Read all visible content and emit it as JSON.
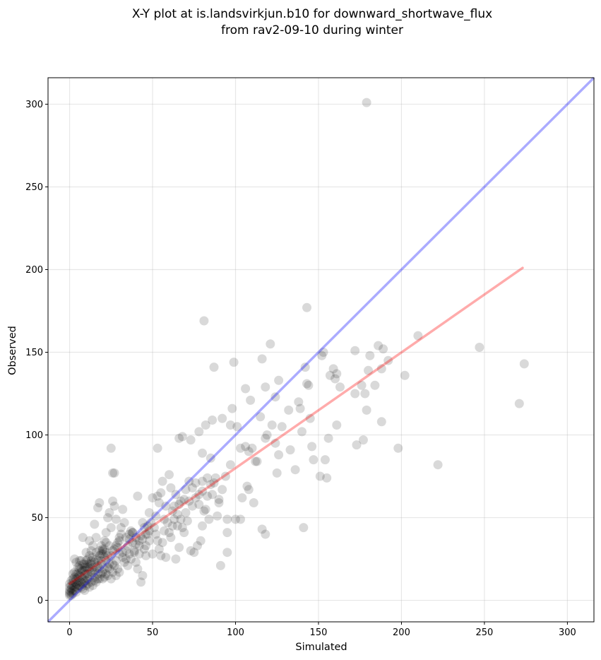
{
  "chart_data": {
    "type": "scatter",
    "title_line1": "X-Y plot at is.landsvirkjun.b10 for downward_shortwave_flux",
    "title_line2": "from rav2-09-10 during winter",
    "xlabel": "Simulated",
    "ylabel": "Observed",
    "xlim": [
      -13,
      316
    ],
    "ylim": [
      -13,
      316
    ],
    "xticks": [
      0,
      50,
      100,
      150,
      200,
      250,
      300
    ],
    "yticks": [
      0,
      50,
      100,
      150,
      200,
      250,
      300
    ],
    "grid": true,
    "colors": {
      "points": "#000000",
      "identity": "#0000ff",
      "fit": "#ff0000"
    },
    "identity_line": {
      "x": [
        -13,
        316
      ],
      "y": [
        -13,
        316
      ]
    },
    "fit_line": {
      "x": [
        0,
        273
      ],
      "y": [
        10,
        201
      ]
    },
    "points": [
      [
        179,
        301
      ],
      [
        81,
        169
      ],
      [
        143,
        177
      ],
      [
        210,
        160
      ],
      [
        247,
        153
      ],
      [
        274,
        143
      ],
      [
        271,
        119
      ],
      [
        222,
        82
      ],
      [
        198,
        92
      ],
      [
        121,
        155
      ],
      [
        153,
        150
      ],
      [
        172,
        151
      ],
      [
        186,
        154
      ],
      [
        189,
        152
      ],
      [
        192,
        145
      ],
      [
        181,
        148
      ],
      [
        188,
        140
      ],
      [
        180,
        139
      ],
      [
        202,
        136
      ],
      [
        142,
        141
      ],
      [
        143,
        131
      ],
      [
        144,
        130
      ],
      [
        159,
        140
      ],
      [
        161,
        137
      ],
      [
        163,
        129
      ],
      [
        176,
        130
      ],
      [
        184,
        130
      ],
      [
        178,
        125
      ],
      [
        172,
        125
      ],
      [
        157,
        136
      ],
      [
        160,
        134
      ],
      [
        152,
        148
      ],
      [
        87,
        141
      ],
      [
        99,
        144
      ],
      [
        116,
        146
      ],
      [
        118,
        129
      ],
      [
        106,
        128
      ],
      [
        124,
        123
      ],
      [
        126,
        133
      ],
      [
        109,
        121
      ],
      [
        98,
        116
      ],
      [
        132,
        115
      ],
      [
        138,
        120
      ],
      [
        139,
        116
      ],
      [
        140,
        102
      ],
      [
        145,
        110
      ],
      [
        161,
        106
      ],
      [
        179,
        115
      ],
      [
        188,
        108
      ],
      [
        173,
        94
      ],
      [
        177,
        97
      ],
      [
        156,
        98
      ],
      [
        154,
        85
      ],
      [
        151,
        75
      ],
      [
        155,
        74
      ],
      [
        146,
        93
      ],
      [
        147,
        85
      ],
      [
        136,
        79
      ],
      [
        133,
        91
      ],
      [
        125,
        77
      ],
      [
        118,
        98
      ],
      [
        122,
        106
      ],
      [
        128,
        105
      ],
      [
        115,
        111
      ],
      [
        119,
        100
      ],
      [
        124,
        95
      ],
      [
        126,
        88
      ],
      [
        110,
        92
      ],
      [
        112,
        84
      ],
      [
        108,
        90
      ],
      [
        103,
        92
      ],
      [
        106,
        93
      ],
      [
        101,
        105
      ],
      [
        97,
        106
      ],
      [
        92,
        110
      ],
      [
        86,
        109
      ],
      [
        82,
        106
      ],
      [
        80,
        89
      ],
      [
        78,
        102
      ],
      [
        73,
        97
      ],
      [
        66,
        98
      ],
      [
        68,
        99
      ],
      [
        53,
        92
      ],
      [
        25,
        92
      ],
      [
        26,
        77
      ],
      [
        27,
        77
      ],
      [
        103,
        49
      ],
      [
        107,
        69
      ],
      [
        108,
        67
      ],
      [
        111,
        59
      ],
      [
        104,
        62
      ],
      [
        95,
        49
      ],
      [
        95,
        41
      ],
      [
        95,
        29
      ],
      [
        91,
        21
      ],
      [
        90,
        61
      ],
      [
        89,
        51
      ],
      [
        87,
        71
      ],
      [
        85,
        86
      ],
      [
        83,
        74
      ],
      [
        81,
        54
      ],
      [
        80,
        72
      ],
      [
        78,
        64
      ],
      [
        76,
        71
      ],
      [
        74,
        57
      ],
      [
        72,
        72
      ],
      [
        70,
        67
      ],
      [
        69,
        61
      ],
      [
        67,
        60
      ],
      [
        66,
        58
      ],
      [
        65,
        52
      ],
      [
        64,
        64
      ],
      [
        63,
        49
      ],
      [
        62,
        54
      ],
      [
        61,
        68
      ],
      [
        60,
        76
      ],
      [
        58,
        57
      ],
      [
        57,
        49
      ],
      [
        56,
        72
      ],
      [
        55,
        65
      ],
      [
        54,
        59
      ],
      [
        53,
        63
      ],
      [
        52,
        51
      ],
      [
        50,
        62
      ],
      [
        49,
        47
      ],
      [
        48,
        53
      ],
      [
        47,
        45
      ],
      [
        46,
        40
      ],
      [
        45,
        44
      ],
      [
        44,
        47
      ],
      [
        43,
        39
      ],
      [
        42,
        36
      ],
      [
        41,
        63
      ],
      [
        40,
        34
      ],
      [
        39,
        30
      ],
      [
        38,
        41
      ],
      [
        37,
        42
      ],
      [
        36,
        28
      ],
      [
        35,
        33
      ],
      [
        34,
        38
      ],
      [
        33,
        47
      ],
      [
        32,
        55
      ],
      [
        31,
        44
      ],
      [
        30,
        38
      ],
      [
        29,
        32
      ],
      [
        28,
        49
      ],
      [
        27,
        57
      ],
      [
        26,
        60
      ],
      [
        25,
        44
      ],
      [
        24,
        53
      ],
      [
        23,
        50
      ],
      [
        22,
        41
      ],
      [
        21,
        36
      ],
      [
        20,
        31
      ],
      [
        19,
        28
      ],
      [
        18,
        59
      ],
      [
        17,
        56
      ],
      [
        16,
        38
      ],
      [
        15,
        46
      ],
      [
        14,
        33
      ],
      [
        13,
        30
      ],
      [
        12,
        36
      ],
      [
        11,
        25
      ],
      [
        10,
        29
      ],
      [
        9,
        22
      ],
      [
        8,
        38
      ],
      [
        7,
        17
      ],
      [
        6,
        24
      ],
      [
        5,
        20
      ],
      [
        4,
        23
      ],
      [
        3,
        25
      ],
      [
        2,
        16
      ],
      [
        1,
        12
      ],
      [
        0,
        10
      ],
      [
        0,
        8
      ],
      [
        0,
        6
      ],
      [
        0,
        5
      ],
      [
        0,
        4
      ],
      [
        0,
        3
      ],
      [
        1,
        7
      ],
      [
        1,
        5
      ],
      [
        2,
        9
      ],
      [
        2,
        6
      ],
      [
        3,
        11
      ],
      [
        3,
        8
      ],
      [
        4,
        13
      ],
      [
        4,
        10
      ],
      [
        5,
        14
      ],
      [
        5,
        9
      ],
      [
        6,
        12
      ],
      [
        6,
        15
      ],
      [
        7,
        11
      ],
      [
        7,
        19
      ],
      [
        8,
        13
      ],
      [
        8,
        10
      ],
      [
        9,
        15
      ],
      [
        9,
        18
      ],
      [
        10,
        12
      ],
      [
        10,
        20
      ],
      [
        11,
        16
      ],
      [
        11,
        13
      ],
      [
        12,
        19
      ],
      [
        12,
        22
      ],
      [
        13,
        17
      ],
      [
        14,
        20
      ],
      [
        15,
        23
      ],
      [
        15,
        18
      ],
      [
        16,
        25
      ],
      [
        17,
        21
      ],
      [
        18,
        27
      ],
      [
        19,
        24
      ],
      [
        20,
        30
      ],
      [
        21,
        26
      ],
      [
        22,
        29
      ],
      [
        23,
        20
      ],
      [
        24,
        33
      ],
      [
        25,
        27
      ],
      [
        26,
        22
      ],
      [
        27,
        31
      ],
      [
        28,
        24
      ],
      [
        29,
        35
      ],
      [
        30,
        28
      ],
      [
        31,
        40
      ],
      [
        32,
        26
      ],
      [
        33,
        23
      ],
      [
        34,
        30
      ],
      [
        35,
        21
      ],
      [
        36,
        37
      ],
      [
        37,
        25
      ],
      [
        38,
        41
      ],
      [
        39,
        29
      ],
      [
        40,
        23
      ],
      [
        41,
        19
      ],
      [
        42,
        33
      ],
      [
        43,
        11
      ],
      [
        44,
        15
      ],
      [
        45,
        31
      ],
      [
        46,
        27
      ],
      [
        47,
        40
      ],
      [
        48,
        36
      ],
      [
        50,
        28
      ],
      [
        51,
        44
      ],
      [
        53,
        36
      ],
      [
        54,
        31
      ],
      [
        55,
        27
      ],
      [
        56,
        35
      ],
      [
        58,
        26
      ],
      [
        60,
        41
      ],
      [
        62,
        45
      ],
      [
        64,
        25
      ],
      [
        66,
        32
      ],
      [
        68,
        44
      ],
      [
        69,
        41
      ],
      [
        71,
        48
      ],
      [
        73,
        30
      ],
      [
        75,
        29
      ],
      [
        77,
        33
      ],
      [
        79,
        36
      ],
      [
        80,
        45
      ],
      [
        82,
        55
      ],
      [
        84,
        49
      ],
      [
        86,
        64
      ],
      [
        88,
        74
      ],
      [
        90,
        59
      ],
      [
        92,
        67
      ],
      [
        94,
        75
      ],
      [
        97,
        82
      ],
      [
        100,
        49
      ],
      [
        113,
        84
      ],
      [
        116,
        43
      ],
      [
        118,
        40
      ],
      [
        141,
        44
      ],
      [
        2,
        13
      ],
      [
        3,
        17
      ],
      [
        5,
        16
      ],
      [
        6,
        19
      ],
      [
        7,
        14
      ],
      [
        8,
        18
      ],
      [
        9,
        11
      ],
      [
        10,
        16
      ],
      [
        11,
        20
      ],
      [
        12,
        14
      ],
      [
        13,
        22
      ],
      [
        14,
        17
      ],
      [
        15,
        12
      ],
      [
        16,
        20
      ],
      [
        17,
        16
      ],
      [
        18,
        13
      ],
      [
        19,
        22
      ],
      [
        20,
        17
      ],
      [
        21,
        14
      ],
      [
        22,
        24
      ],
      [
        23,
        15
      ],
      [
        24,
        19
      ],
      [
        25,
        13
      ],
      [
        26,
        17
      ],
      [
        27,
        21
      ],
      [
        28,
        15
      ],
      [
        29,
        19
      ],
      [
        30,
        17
      ],
      [
        18,
        30
      ],
      [
        19,
        33
      ],
      [
        20,
        28
      ],
      [
        21,
        31
      ],
      [
        22,
        35
      ],
      [
        17,
        24
      ],
      [
        16,
        29
      ],
      [
        14,
        26
      ],
      [
        13,
        24
      ],
      [
        11,
        22
      ],
      [
        12,
        27
      ],
      [
        10,
        24
      ],
      [
        9,
        20
      ],
      [
        8,
        22
      ],
      [
        7,
        24
      ],
      [
        6,
        21
      ],
      [
        5,
        11
      ],
      [
        4,
        8
      ],
      [
        3,
        6
      ],
      [
        2,
        4
      ],
      [
        1,
        3
      ],
      [
        1,
        9
      ],
      [
        2,
        11
      ],
      [
        3,
        14
      ],
      [
        4,
        16
      ],
      [
        4,
        5
      ],
      [
        5,
        7
      ],
      [
        6,
        9
      ],
      [
        7,
        8
      ],
      [
        8,
        7
      ],
      [
        9,
        6
      ],
      [
        10,
        9
      ],
      [
        11,
        10
      ],
      [
        12,
        8
      ],
      [
        13,
        11
      ],
      [
        14,
        9
      ],
      [
        15,
        14
      ],
      [
        16,
        11
      ],
      [
        17,
        13
      ],
      [
        18,
        19
      ],
      [
        19,
        16
      ],
      [
        20,
        13
      ],
      [
        21,
        19
      ],
      [
        22,
        16
      ],
      [
        23,
        27
      ],
      [
        24,
        22
      ],
      [
        26,
        30
      ],
      [
        28,
        33
      ],
      [
        30,
        36
      ],
      [
        32,
        29
      ],
      [
        34,
        25
      ],
      [
        36,
        40
      ],
      [
        38,
        35
      ],
      [
        40,
        38
      ],
      [
        42,
        28
      ],
      [
        44,
        37
      ],
      [
        46,
        33
      ],
      [
        48,
        42
      ],
      [
        52,
        40
      ],
      [
        57,
        42
      ],
      [
        59,
        47
      ],
      [
        61,
        38
      ],
      [
        63,
        57
      ],
      [
        65,
        45
      ],
      [
        67,
        49
      ],
      [
        70,
        53
      ],
      [
        72,
        60
      ],
      [
        74,
        68
      ],
      [
        76,
        62
      ],
      [
        78,
        58
      ],
      [
        80,
        66
      ],
      [
        83,
        63
      ],
      [
        85,
        70
      ]
    ]
  }
}
